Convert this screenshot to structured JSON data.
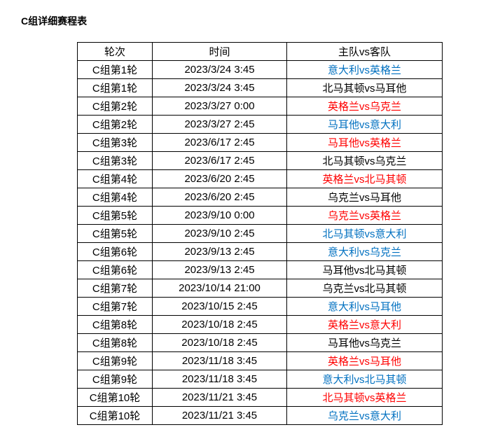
{
  "title": "C组详细赛程表",
  "colors": {
    "black": "#000000",
    "red": "#ff0000",
    "blue": "#0070c0"
  },
  "columns": [
    "轮次",
    "时间",
    "主队vs客队"
  ],
  "rows": [
    {
      "round": "C组第1轮",
      "time": "2023/3/24 3:45",
      "match": "意大利vs英格兰",
      "color": "blue"
    },
    {
      "round": "C组第1轮",
      "time": "2023/3/24 3:45",
      "match": "北马其顿vs马耳他",
      "color": "black"
    },
    {
      "round": "C组第2轮",
      "time": "2023/3/27 0:00",
      "match": "英格兰vs乌克兰",
      "color": "red"
    },
    {
      "round": "C组第2轮",
      "time": "2023/3/27 2:45",
      "match": "马耳他vs意大利",
      "color": "blue"
    },
    {
      "round": "C组第3轮",
      "time": "2023/6/17 2:45",
      "match": "马耳他vs英格兰",
      "color": "red"
    },
    {
      "round": "C组第3轮",
      "time": "2023/6/17 2:45",
      "match": "北马其顿vs乌克兰",
      "color": "black"
    },
    {
      "round": "C组第4轮",
      "time": "2023/6/20 2:45",
      "match": "英格兰vs北马其顿",
      "color": "red"
    },
    {
      "round": "C组第4轮",
      "time": "2023/6/20 2:45",
      "match": "乌克兰vs马耳他",
      "color": "black"
    },
    {
      "round": "C组第5轮",
      "time": "2023/9/10 0:00",
      "match": "乌克兰vs英格兰",
      "color": "red"
    },
    {
      "round": "C组第5轮",
      "time": "2023/9/10 2:45",
      "match": "北马其顿vs意大利",
      "color": "blue"
    },
    {
      "round": "C组第6轮",
      "time": "2023/9/13 2:45",
      "match": "意大利vs乌克兰",
      "color": "blue"
    },
    {
      "round": "C组第6轮",
      "time": "2023/9/13 2:45",
      "match": "马耳他vs北马其顿",
      "color": "black"
    },
    {
      "round": "C组第7轮",
      "time": "2023/10/14 21:00",
      "match": "乌克兰vs北马其顿",
      "color": "black"
    },
    {
      "round": "C组第7轮",
      "time": "2023/10/15 2:45",
      "match": "意大利vs马耳他",
      "color": "blue"
    },
    {
      "round": "C组第8轮",
      "time": "2023/10/18 2:45",
      "match": "英格兰vs意大利",
      "color": "red"
    },
    {
      "round": "C组第8轮",
      "time": "2023/10/18 2:45",
      "match": "马耳他vs乌克兰",
      "color": "black"
    },
    {
      "round": "C组第9轮",
      "time": "2023/11/18 3:45",
      "match": "英格兰vs马耳他",
      "color": "red"
    },
    {
      "round": "C组第9轮",
      "time": "2023/11/18 3:45",
      "match": "意大利vs北马其顿",
      "color": "blue"
    },
    {
      "round": "C组第10轮",
      "time": "2023/11/21 3:45",
      "match": "北马其顿vs英格兰",
      "color": "red"
    },
    {
      "round": "C组第10轮",
      "time": "2023/11/21 3:45",
      "match": "乌克兰vs意大利",
      "color": "blue"
    }
  ]
}
